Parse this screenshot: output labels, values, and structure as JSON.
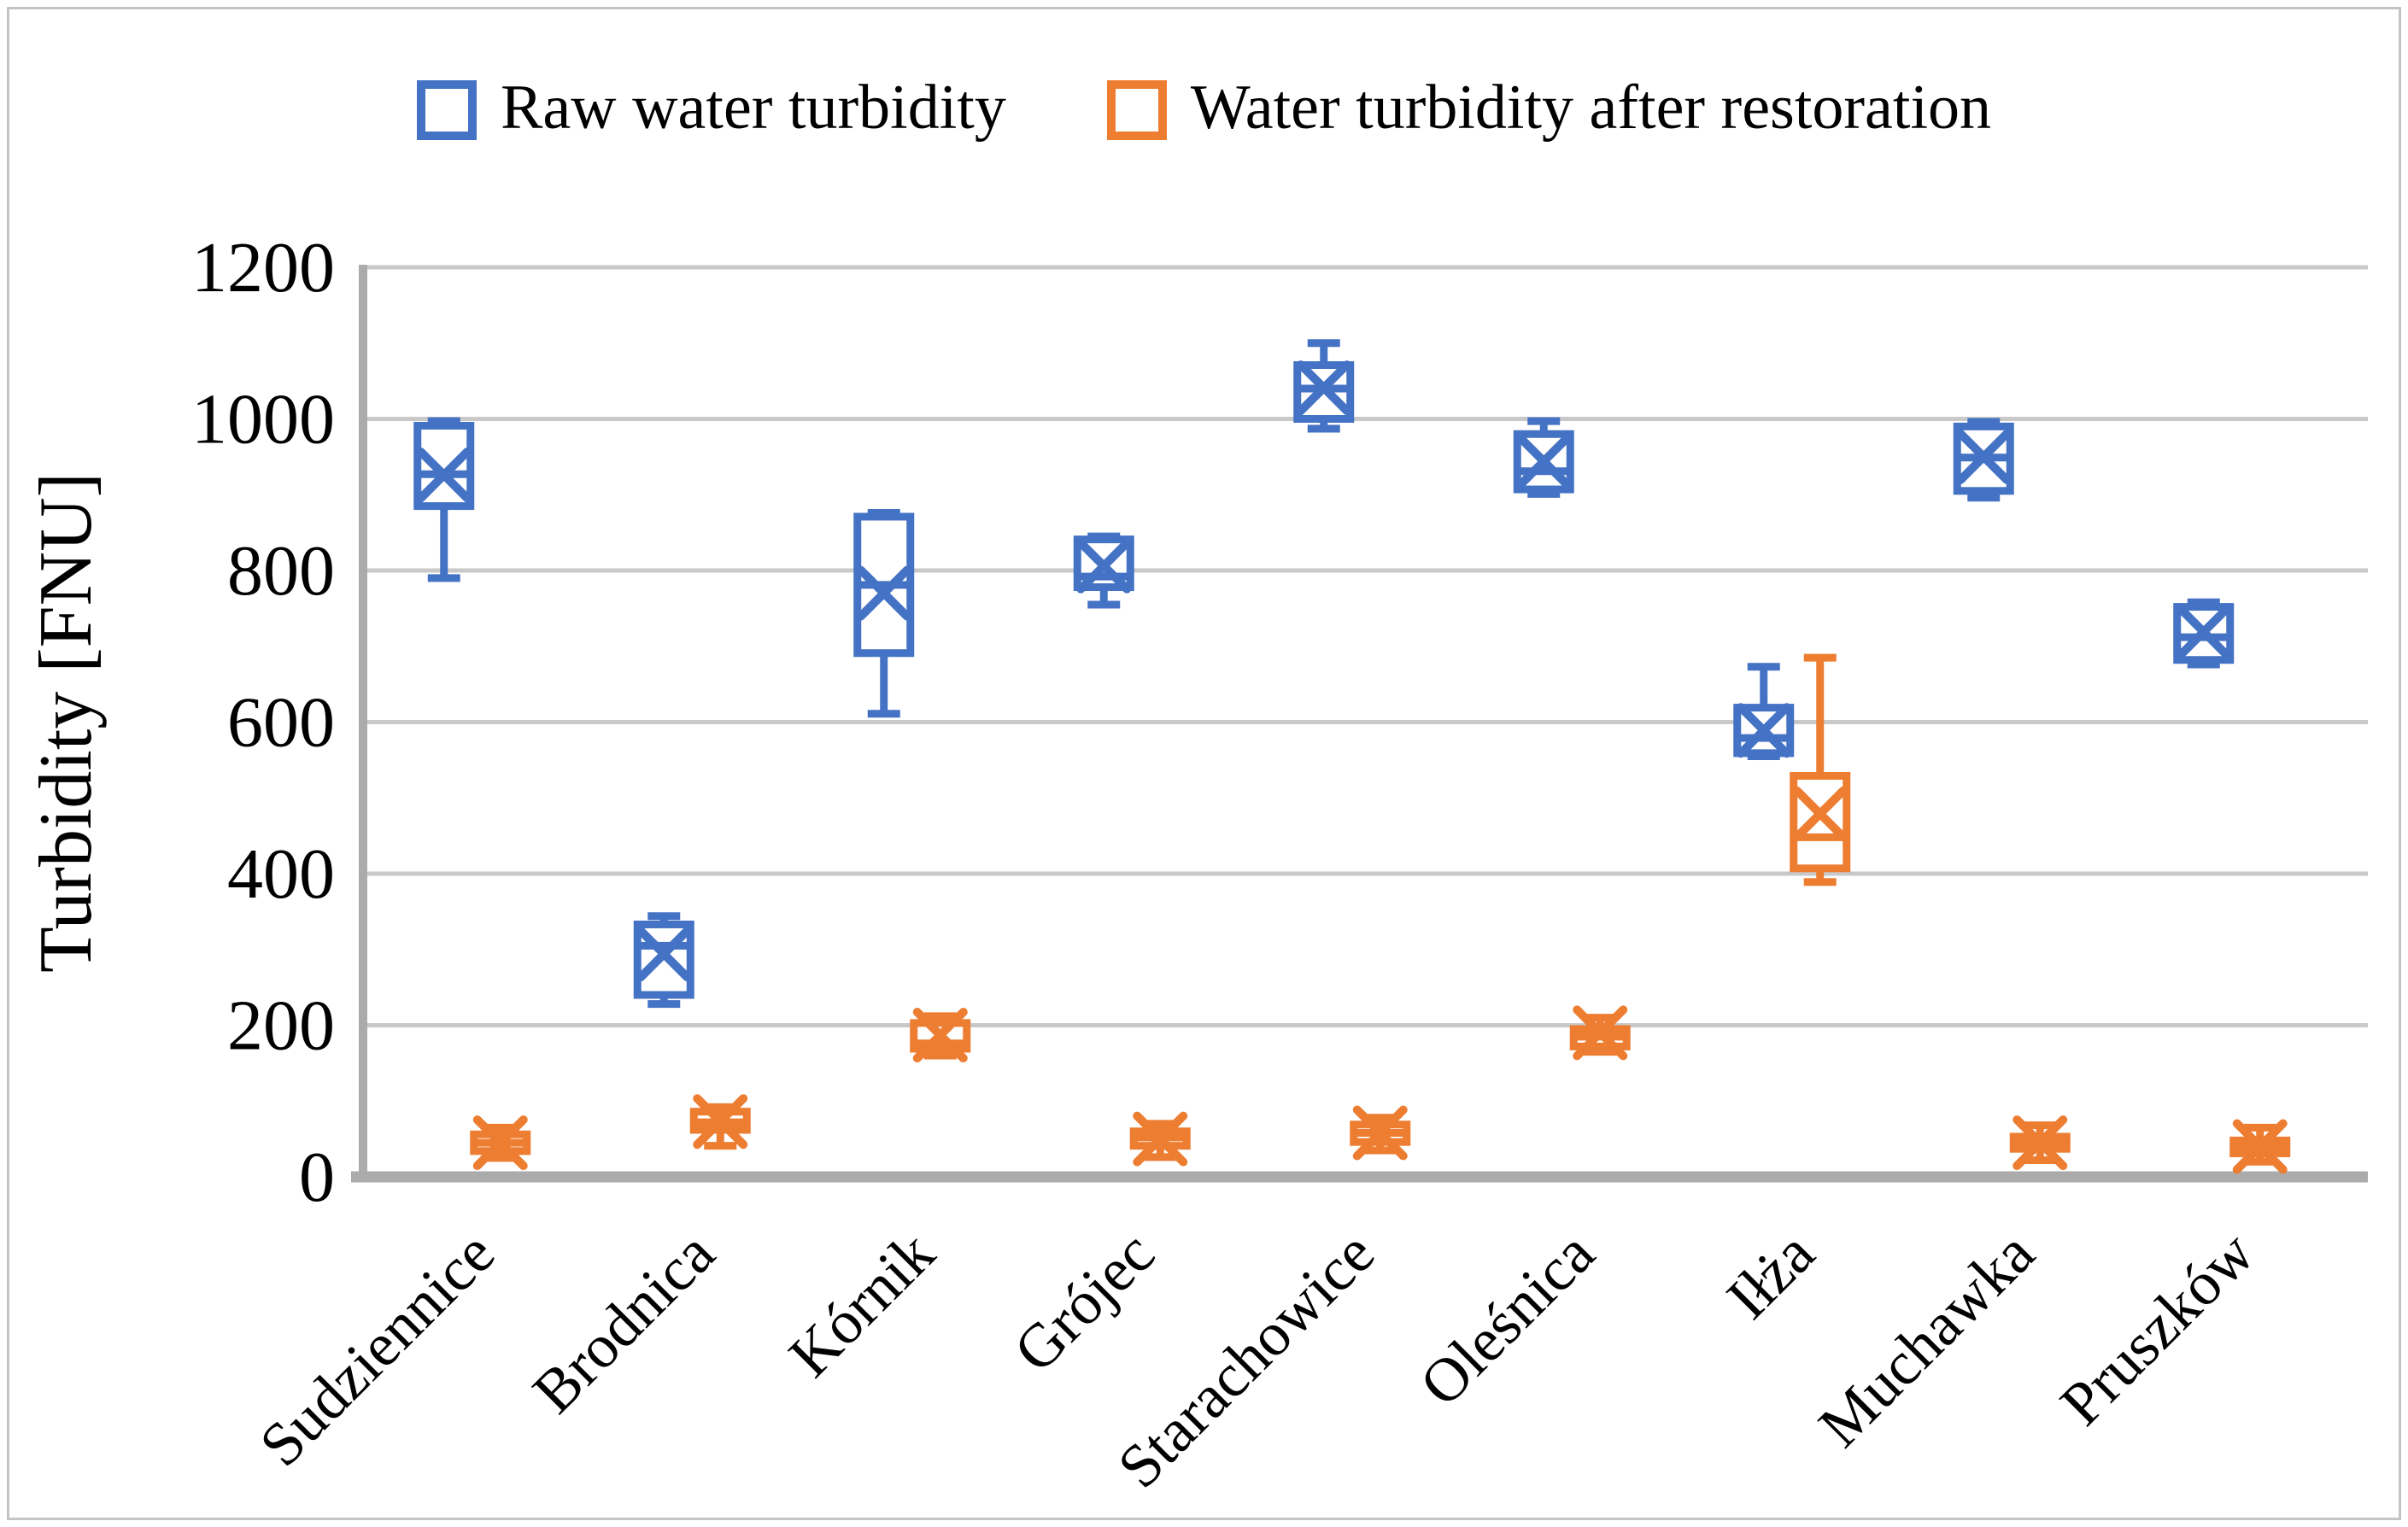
{
  "figure": {
    "background": "#ffffff",
    "frame_border_color": "#c5c5c5"
  },
  "legend": {
    "position": "top-center",
    "items": [
      {
        "label": "Raw water turbidity",
        "color": "#4472C4"
      },
      {
        "label": "Water turbidity after restoration",
        "color": "#ED7D31"
      }
    ]
  },
  "chart_data": {
    "type": "boxplot",
    "title": "",
    "xlabel": "",
    "ylabel": "Turbidity [FNU]",
    "ylim": [
      0,
      1200
    ],
    "yticks": [
      0,
      200,
      400,
      600,
      800,
      1000,
      1200
    ],
    "grid": true,
    "grid_color": "#c9c9c9",
    "axis_color": "#ababab",
    "legend_position": "top",
    "x_label_rotation_deg": -45,
    "categories": [
      "Sudziennice",
      "Brodnica",
      "Kórnik",
      "Grójec",
      "Starachowice",
      "Oleśnica",
      "Iłża",
      "Muchawka",
      "Pruszków"
    ],
    "series": [
      {
        "name": "Raw water turbidity",
        "color": "#4472C4",
        "boxes": [
          {
            "min": 790,
            "q1": 885,
            "median": 927,
            "mean": 926,
            "q3": 991,
            "max": 997
          },
          {
            "min": 228,
            "q1": 240,
            "median": 305,
            "mean": 294,
            "q3": 333,
            "max": 344
          },
          {
            "min": 611,
            "q1": 691,
            "median": 781,
            "mean": 770,
            "q3": 871,
            "max": 876
          },
          {
            "min": 755,
            "q1": 778,
            "median": 792,
            "mean": 806,
            "q3": 841,
            "max": 845
          },
          {
            "min": 987,
            "q1": 1000,
            "median": 1040,
            "mean": 1041,
            "q3": 1071,
            "max": 1100
          },
          {
            "min": 901,
            "q1": 907,
            "median": 931,
            "mean": 944,
            "q3": 980,
            "max": 997
          },
          {
            "min": 555,
            "q1": 559,
            "median": 579,
            "mean": 589,
            "q3": 619,
            "max": 673
          },
          {
            "min": 896,
            "q1": 905,
            "median": 949,
            "mean": 950,
            "q3": 990,
            "max": 996
          },
          {
            "min": 676,
            "q1": 682,
            "median": 712,
            "mean": 719,
            "q3": 752,
            "max": 758
          }
        ]
      },
      {
        "name": "Water turbidity after restoration",
        "color": "#ED7D31",
        "boxes": [
          {
            "min": 25,
            "q1": 34,
            "median": 45,
            "mean": 45,
            "q3": 56,
            "max": 65
          },
          {
            "min": 41,
            "q1": 62,
            "median": 72,
            "mean": 73,
            "q3": 86,
            "max": 92
          },
          {
            "min": 160,
            "q1": 169,
            "median": 176,
            "mean": 187,
            "q3": 203,
            "max": 212
          },
          {
            "min": 26,
            "q1": 41,
            "median": 52,
            "mean": 50,
            "q3": 60,
            "max": 70
          },
          {
            "min": 35,
            "q1": 46,
            "median": 58,
            "mean": 58,
            "q3": 69,
            "max": 78
          },
          {
            "min": 165,
            "q1": 172,
            "median": 185,
            "mean": 190,
            "q3": 195,
            "max": 210
          },
          {
            "min": 389,
            "q1": 407,
            "median": 448,
            "mean": 479,
            "q3": 529,
            "max": 685
          },
          {
            "min": 22,
            "q1": 37,
            "median": 45,
            "mean": 45,
            "q3": 53,
            "max": 68
          },
          {
            "min": 20,
            "q1": 31,
            "median": 40,
            "mean": 40,
            "q3": 48,
            "max": 65
          }
        ]
      }
    ]
  }
}
